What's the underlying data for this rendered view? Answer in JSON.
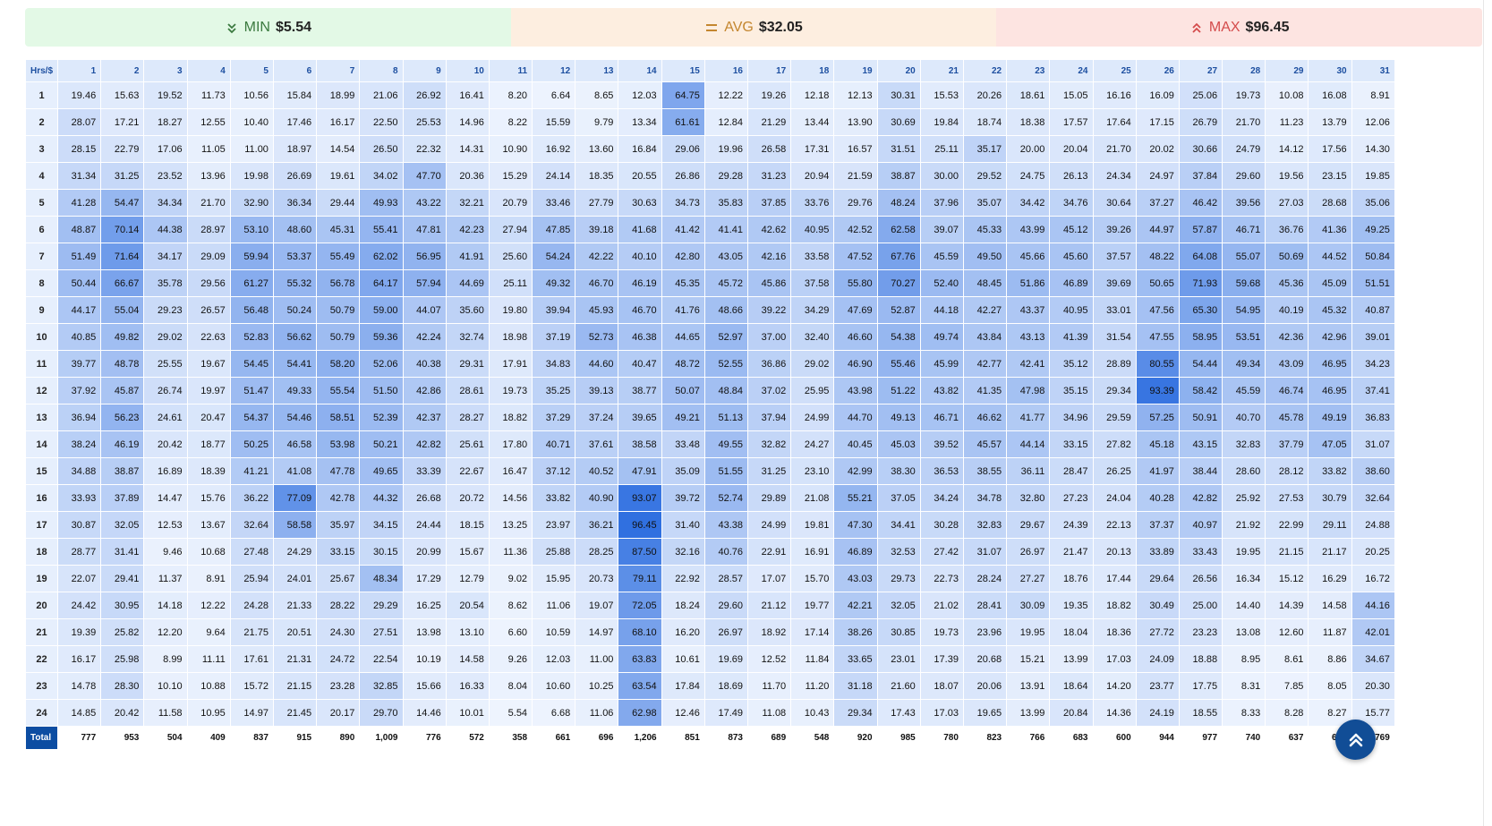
{
  "stats": {
    "min": {
      "label": "MIN",
      "value": "$5.54"
    },
    "avg": {
      "label": "AVG",
      "value": "$32.05"
    },
    "max": {
      "label": "MAX",
      "value": "$96.45"
    }
  },
  "table": {
    "corner_label": "Hrs/$",
    "days": [
      "1",
      "2",
      "3",
      "4",
      "5",
      "6",
      "7",
      "8",
      "9",
      "10",
      "11",
      "12",
      "13",
      "14",
      "15",
      "16",
      "17",
      "18",
      "19",
      "20",
      "21",
      "22",
      "23",
      "24",
      "25",
      "26",
      "27",
      "28",
      "29",
      "30",
      "31"
    ],
    "hours": [
      "1",
      "2",
      "3",
      "4",
      "5",
      "6",
      "7",
      "8",
      "9",
      "10",
      "11",
      "12",
      "13",
      "14",
      "15",
      "16",
      "17",
      "18",
      "19",
      "20",
      "21",
      "22",
      "23",
      "24"
    ],
    "cells": [
      [
        "19.46",
        "15.63",
        "19.52",
        "11.73",
        "10.56",
        "15.84",
        "18.99",
        "21.06",
        "26.92",
        "16.41",
        "8.20",
        "6.64",
        "8.65",
        "12.03",
        "64.75",
        "12.22",
        "19.26",
        "12.18",
        "12.13",
        "30.31",
        "15.53",
        "20.26",
        "18.61",
        "15.05",
        "16.16",
        "16.09",
        "25.06",
        "19.73",
        "10.08",
        "16.08",
        "8.91"
      ],
      [
        "28.07",
        "17.21",
        "18.27",
        "12.55",
        "10.40",
        "17.46",
        "16.17",
        "22.50",
        "25.53",
        "14.96",
        "8.22",
        "15.59",
        "9.79",
        "13.34",
        "61.61",
        "12.84",
        "21.29",
        "13.44",
        "13.90",
        "30.69",
        "19.84",
        "18.74",
        "18.38",
        "17.57",
        "17.64",
        "17.15",
        "26.79",
        "21.70",
        "11.23",
        "13.79",
        "12.06"
      ],
      [
        "28.15",
        "22.79",
        "17.06",
        "11.05",
        "11.00",
        "18.97",
        "14.54",
        "26.50",
        "22.32",
        "14.31",
        "10.90",
        "16.92",
        "13.60",
        "16.84",
        "29.06",
        "19.96",
        "26.58",
        "17.31",
        "16.57",
        "31.51",
        "25.11",
        "35.17",
        "20.00",
        "20.04",
        "21.70",
        "20.02",
        "30.66",
        "24.79",
        "14.12",
        "17.56",
        "14.30"
      ],
      [
        "31.34",
        "31.25",
        "23.52",
        "13.96",
        "19.98",
        "26.69",
        "19.61",
        "34.02",
        "47.70",
        "20.36",
        "15.29",
        "24.14",
        "18.35",
        "20.55",
        "26.86",
        "29.28",
        "31.23",
        "20.94",
        "21.59",
        "38.87",
        "30.00",
        "29.52",
        "24.75",
        "26.13",
        "24.34",
        "24.97",
        "37.84",
        "29.60",
        "19.56",
        "23.15",
        "19.85"
      ],
      [
        "41.28",
        "54.47",
        "34.34",
        "21.70",
        "32.90",
        "36.34",
        "29.44",
        "49.93",
        "43.22",
        "32.21",
        "20.79",
        "33.46",
        "27.79",
        "30.63",
        "34.73",
        "35.83",
        "37.85",
        "33.76",
        "29.76",
        "48.24",
        "37.96",
        "35.07",
        "34.42",
        "34.76",
        "30.64",
        "37.27",
        "46.42",
        "39.56",
        "27.03",
        "28.68",
        "35.06"
      ],
      [
        "48.87",
        "70.14",
        "44.38",
        "28.97",
        "53.10",
        "48.60",
        "45.31",
        "55.41",
        "47.81",
        "42.23",
        "27.94",
        "47.85",
        "39.18",
        "41.68",
        "41.42",
        "41.41",
        "42.62",
        "40.95",
        "42.52",
        "62.58",
        "39.07",
        "45.33",
        "43.99",
        "45.12",
        "39.26",
        "44.97",
        "57.87",
        "46.71",
        "36.76",
        "41.36",
        "49.25"
      ],
      [
        "51.49",
        "71.64",
        "34.17",
        "29.09",
        "59.94",
        "53.37",
        "55.49",
        "62.02",
        "56.95",
        "41.91",
        "25.60",
        "54.24",
        "42.22",
        "40.10",
        "42.80",
        "43.05",
        "42.16",
        "33.58",
        "47.52",
        "67.76",
        "45.59",
        "49.50",
        "45.66",
        "45.60",
        "37.57",
        "48.22",
        "64.08",
        "55.07",
        "50.69",
        "44.52",
        "50.84"
      ],
      [
        "50.44",
        "66.67",
        "35.78",
        "29.56",
        "61.27",
        "55.32",
        "56.78",
        "64.17",
        "57.94",
        "44.69",
        "25.11",
        "49.32",
        "46.70",
        "46.19",
        "45.35",
        "45.72",
        "45.86",
        "37.58",
        "55.80",
        "70.27",
        "52.40",
        "48.45",
        "51.86",
        "46.89",
        "39.69",
        "50.65",
        "71.93",
        "59.68",
        "45.36",
        "45.09",
        "51.51"
      ],
      [
        "44.17",
        "55.04",
        "29.23",
        "26.57",
        "56.48",
        "50.24",
        "50.79",
        "59.00",
        "44.07",
        "35.60",
        "19.80",
        "39.94",
        "45.93",
        "46.70",
        "41.76",
        "48.66",
        "39.22",
        "34.29",
        "47.69",
        "52.87",
        "44.18",
        "42.27",
        "43.37",
        "40.95",
        "33.01",
        "47.56",
        "65.30",
        "54.95",
        "40.19",
        "45.32",
        "40.87"
      ],
      [
        "40.85",
        "49.82",
        "29.02",
        "22.63",
        "52.83",
        "56.62",
        "50.79",
        "59.36",
        "42.24",
        "32.74",
        "18.98",
        "37.19",
        "52.73",
        "46.38",
        "44.65",
        "52.97",
        "37.00",
        "32.40",
        "46.60",
        "54.38",
        "49.74",
        "43.84",
        "43.13",
        "41.39",
        "31.54",
        "47.55",
        "58.95",
        "53.51",
        "42.36",
        "42.96",
        "39.01"
      ],
      [
        "39.77",
        "48.78",
        "25.55",
        "19.67",
        "54.45",
        "54.41",
        "58.20",
        "52.06",
        "40.38",
        "29.31",
        "17.91",
        "34.83",
        "44.60",
        "40.47",
        "48.72",
        "52.55",
        "36.86",
        "29.02",
        "46.90",
        "55.46",
        "45.99",
        "42.77",
        "42.41",
        "35.12",
        "28.89",
        "80.55",
        "54.44",
        "49.34",
        "43.09",
        "46.95",
        "34.23"
      ],
      [
        "37.92",
        "45.87",
        "26.74",
        "19.97",
        "51.47",
        "49.33",
        "55.54",
        "51.50",
        "42.86",
        "28.61",
        "19.73",
        "35.25",
        "39.13",
        "38.77",
        "50.07",
        "48.84",
        "37.02",
        "25.95",
        "43.98",
        "51.22",
        "43.82",
        "41.35",
        "47.98",
        "35.15",
        "29.34",
        "93.39",
        "58.42",
        "45.59",
        "46.74",
        "46.95",
        "37.41"
      ],
      [
        "36.94",
        "56.23",
        "24.61",
        "20.47",
        "54.37",
        "54.46",
        "58.51",
        "52.39",
        "42.37",
        "28.27",
        "18.82",
        "37.29",
        "37.24",
        "39.65",
        "49.21",
        "51.13",
        "37.94",
        "24.99",
        "44.70",
        "49.13",
        "46.71",
        "46.62",
        "41.77",
        "34.96",
        "29.59",
        "57.25",
        "50.91",
        "40.70",
        "45.78",
        "49.19",
        "36.83"
      ],
      [
        "38.24",
        "46.19",
        "20.42",
        "18.77",
        "50.25",
        "46.58",
        "53.98",
        "50.21",
        "42.82",
        "25.61",
        "17.80",
        "40.71",
        "37.61",
        "38.58",
        "33.48",
        "49.55",
        "32.82",
        "24.27",
        "40.45",
        "45.03",
        "39.52",
        "45.57",
        "44.14",
        "33.15",
        "27.82",
        "45.18",
        "43.15",
        "32.83",
        "37.79",
        "47.05",
        "31.07"
      ],
      [
        "34.88",
        "38.87",
        "16.89",
        "18.39",
        "41.21",
        "41.08",
        "47.78",
        "49.65",
        "33.39",
        "22.67",
        "16.47",
        "37.12",
        "40.52",
        "47.91",
        "35.09",
        "51.55",
        "31.25",
        "23.10",
        "42.99",
        "38.30",
        "36.53",
        "38.55",
        "36.11",
        "28.47",
        "26.25",
        "41.97",
        "38.44",
        "28.60",
        "28.12",
        "33.82",
        "38.60"
      ],
      [
        "33.93",
        "37.89",
        "14.47",
        "15.76",
        "36.22",
        "77.09",
        "42.78",
        "44.32",
        "26.68",
        "20.72",
        "14.56",
        "33.82",
        "40.90",
        "93.07",
        "39.72",
        "52.74",
        "29.89",
        "21.08",
        "55.21",
        "37.05",
        "34.24",
        "34.78",
        "32.80",
        "27.23",
        "24.04",
        "40.28",
        "42.82",
        "25.92",
        "27.53",
        "30.79",
        "32.64"
      ],
      [
        "30.87",
        "32.05",
        "12.53",
        "13.67",
        "32.64",
        "58.58",
        "35.97",
        "34.15",
        "24.44",
        "18.15",
        "13.25",
        "23.97",
        "36.21",
        "96.45",
        "31.40",
        "43.38",
        "24.99",
        "19.81",
        "47.30",
        "34.41",
        "30.28",
        "32.83",
        "29.67",
        "24.39",
        "22.13",
        "37.37",
        "40.97",
        "21.92",
        "22.99",
        "29.11",
        "24.88"
      ],
      [
        "28.77",
        "31.41",
        "9.46",
        "10.68",
        "27.48",
        "24.29",
        "33.15",
        "30.15",
        "20.99",
        "15.67",
        "11.36",
        "25.88",
        "28.25",
        "87.50",
        "32.16",
        "40.76",
        "22.91",
        "16.91",
        "46.89",
        "32.53",
        "27.42",
        "31.07",
        "26.97",
        "21.47",
        "20.13",
        "33.89",
        "33.43",
        "19.95",
        "21.15",
        "21.17",
        "20.25"
      ],
      [
        "22.07",
        "29.41",
        "11.37",
        "8.91",
        "25.94",
        "24.01",
        "25.67",
        "48.34",
        "17.29",
        "12.79",
        "9.02",
        "15.95",
        "20.73",
        "79.11",
        "22.92",
        "28.57",
        "17.07",
        "15.70",
        "43.03",
        "29.73",
        "22.73",
        "28.24",
        "27.27",
        "18.76",
        "17.44",
        "29.64",
        "26.56",
        "16.34",
        "15.12",
        "16.29",
        "16.72"
      ],
      [
        "24.42",
        "30.95",
        "14.18",
        "12.22",
        "24.28",
        "21.33",
        "28.22",
        "29.29",
        "16.25",
        "20.54",
        "8.62",
        "11.06",
        "19.07",
        "72.05",
        "18.24",
        "29.60",
        "21.12",
        "19.77",
        "42.21",
        "32.05",
        "21.02",
        "28.41",
        "30.09",
        "19.35",
        "18.82",
        "30.49",
        "25.00",
        "14.40",
        "14.39",
        "14.58",
        "44.16"
      ],
      [
        "19.39",
        "25.82",
        "12.20",
        "9.64",
        "21.75",
        "20.51",
        "24.30",
        "27.51",
        "13.98",
        "13.10",
        "6.60",
        "10.59",
        "14.97",
        "68.10",
        "16.20",
        "26.97",
        "18.92",
        "17.14",
        "38.26",
        "30.85",
        "19.73",
        "23.96",
        "19.95",
        "18.04",
        "18.36",
        "27.72",
        "23.23",
        "13.08",
        "12.60",
        "11.87",
        "42.01"
      ],
      [
        "16.17",
        "25.98",
        "8.99",
        "11.11",
        "17.61",
        "21.31",
        "24.72",
        "22.54",
        "10.19",
        "14.58",
        "9.26",
        "12.03",
        "11.00",
        "63.83",
        "10.61",
        "19.69",
        "12.52",
        "11.84",
        "33.65",
        "23.01",
        "17.39",
        "20.68",
        "15.21",
        "13.99",
        "17.03",
        "24.09",
        "18.88",
        "8.95",
        "8.61",
        "8.86",
        "34.67"
      ],
      [
        "14.78",
        "28.30",
        "10.10",
        "10.88",
        "15.72",
        "21.15",
        "23.28",
        "32.85",
        "15.66",
        "16.33",
        "8.04",
        "10.60",
        "10.25",
        "63.54",
        "17.84",
        "18.69",
        "11.70",
        "11.20",
        "31.18",
        "21.60",
        "18.07",
        "20.06",
        "13.91",
        "18.64",
        "14.20",
        "23.77",
        "17.75",
        "8.31",
        "7.85",
        "8.05",
        "20.30"
      ],
      [
        "14.85",
        "20.42",
        "11.58",
        "10.95",
        "14.97",
        "21.45",
        "20.17",
        "29.70",
        "14.46",
        "10.01",
        "5.54",
        "6.68",
        "11.06",
        "62.98",
        "12.46",
        "17.49",
        "11.08",
        "10.43",
        "29.34",
        "17.43",
        "17.03",
        "19.65",
        "13.99",
        "20.84",
        "14.36",
        "24.19",
        "18.55",
        "8.33",
        "8.28",
        "8.27",
        "15.77"
      ]
    ],
    "total_label": "Total",
    "totals": [
      "777",
      "953",
      "504",
      "409",
      "837",
      "915",
      "890",
      "1,009",
      "776",
      "572",
      "358",
      "661",
      "696",
      "1,206",
      "851",
      "873",
      "689",
      "548",
      "920",
      "985",
      "780",
      "823",
      "766",
      "683",
      "600",
      "944",
      "977",
      "740",
      "637",
      "691",
      "769"
    ]
  },
  "colors": {
    "heat_low": "#eef4fe",
    "heat_high": "#2f6fe0",
    "header_bg": "#dde9fb",
    "total_label_bg": "#0c4da2",
    "fab_bg": "#114d96"
  },
  "icons": {
    "min": "double-chevron-down-icon",
    "avg": "equals-icon",
    "max": "double-chevron-up-icon",
    "fab": "double-chevron-up-icon"
  }
}
